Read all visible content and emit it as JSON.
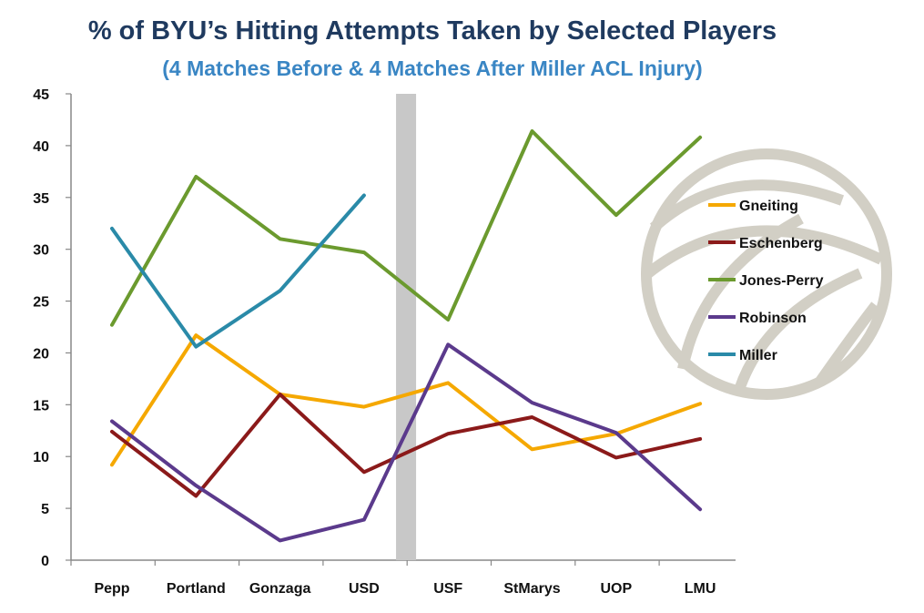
{
  "title": "% of BYU’s Hitting Attempts Taken by Selected Players",
  "subtitle": "(4 Matches Before & 4 Matches After Miller ACL Injury)",
  "chart_data": {
    "type": "line",
    "title": "% of BYU’s Hitting Attempts Taken by Selected Players",
    "subtitle": "(4 Matches Before & 4 Matches After Miller ACL Injury)",
    "categories": [
      "Pepp",
      "Portland",
      "Gonzaga",
      "USD",
      "USF",
      "StMarys",
      "UOP",
      "LMU"
    ],
    "ylim": [
      0,
      45
    ],
    "yticks": [
      0,
      5,
      10,
      15,
      20,
      25,
      30,
      35,
      40,
      45
    ],
    "grid": false,
    "legend_position": "right",
    "separator_between": [
      "USD",
      "USF"
    ],
    "series": [
      {
        "name": "Gneiting",
        "color": "#f5a800",
        "values": [
          9.2,
          21.7,
          16.0,
          14.8,
          17.1,
          10.7,
          12.2,
          15.1
        ]
      },
      {
        "name": "Eschenberg",
        "color": "#8b1a1a",
        "values": [
          12.4,
          6.2,
          16.0,
          8.5,
          12.2,
          13.8,
          9.9,
          11.7
        ]
      },
      {
        "name": "Jones-Perry",
        "color": "#6b9a2e",
        "values": [
          22.7,
          37.0,
          31.0,
          29.7,
          23.2,
          41.4,
          33.3,
          40.8
        ]
      },
      {
        "name": "Robinson",
        "color": "#5b3a8c",
        "values": [
          13.4,
          7.2,
          1.9,
          3.9,
          20.8,
          15.2,
          12.3,
          4.9
        ]
      },
      {
        "name": "Miller",
        "color": "#2a8aa8",
        "values": [
          32.0,
          20.6,
          26.0,
          35.2,
          null,
          null,
          null,
          null
        ]
      }
    ]
  }
}
